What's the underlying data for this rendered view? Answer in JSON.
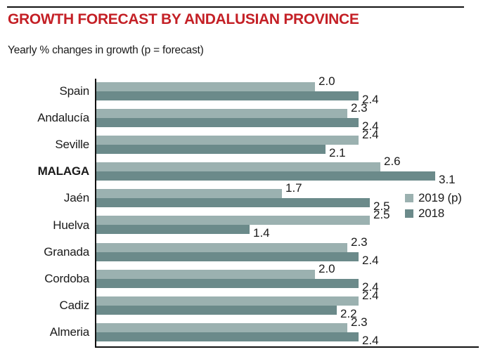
{
  "header": {
    "title": "GROWTH FORECAST BY ANDALUSIAN PROVINCE",
    "subtitle": "Yearly % changes in growth (p = forecast)"
  },
  "colors": {
    "title_red": "#c42026",
    "text": "#1a1a1a",
    "axis": "#111111",
    "series_2019p": "#9bb1b0",
    "series_2018": "#6b8a8a"
  },
  "chart_data": {
    "type": "bar",
    "orientation": "horizontal",
    "title": "GROWTH FORECAST BY ANDALUSIAN PROVINCE",
    "subtitle": "Yearly % changes in growth (p = forecast)",
    "categories": [
      "Spain",
      "Andalucía",
      "Seville",
      "MALAGA",
      "Jaén",
      "Huelva",
      "Granada",
      "Cordoba",
      "Cadiz",
      "Almeria"
    ],
    "emphasized_category": "MALAGA",
    "series": [
      {
        "name": "2019 (p)",
        "color": "#9bb1b0",
        "values": [
          2.0,
          2.3,
          2.4,
          2.6,
          1.7,
          2.5,
          2.3,
          2.0,
          2.4,
          2.3
        ]
      },
      {
        "name": "2018",
        "color": "#6b8a8a",
        "values": [
          2.4,
          2.4,
          2.1,
          3.1,
          2.5,
          1.4,
          2.4,
          2.4,
          2.2,
          2.4
        ]
      }
    ],
    "value_labels": true,
    "value_format": "one-decimal",
    "xlim": [
      0,
      3.5
    ],
    "grid": false,
    "legend_position": "right-middle"
  }
}
